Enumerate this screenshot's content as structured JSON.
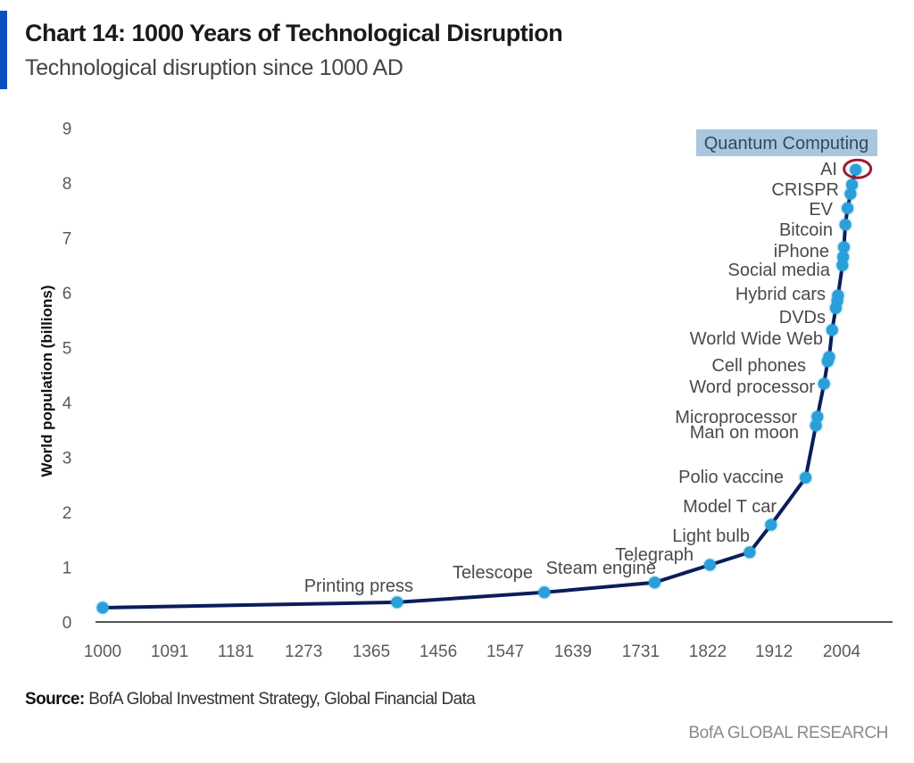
{
  "header": {
    "title": "Chart 14: 1000 Years of Technological Disruption",
    "subtitle": "Technological disruption since 1000 AD"
  },
  "footer": {
    "source_label": "Source:",
    "source_text": " BofA Global Investment Strategy, Global Financial Data",
    "brand": "BofA GLOBAL RESEARCH"
  },
  "colors": {
    "accent_bar": "#0a4fc2",
    "line": "#0b1d5a",
    "marker": "#2b9fd9",
    "highlight_box": "#a9c6de",
    "highlight_ring": "#9e1b2e",
    "axis": "#555555"
  },
  "chart_data": {
    "type": "line",
    "title": "Chart 14: 1000 Years of Technological Disruption",
    "subtitle": "Technological disruption since 1000 AD",
    "xlabel": "",
    "ylabel": "World population (billions)",
    "xlim": [
      1000,
      2023
    ],
    "ylim": [
      0,
      9
    ],
    "x_ticks": [
      1000,
      1091,
      1181,
      1273,
      1365,
      1456,
      1547,
      1639,
      1731,
      1822,
      1912,
      2004
    ],
    "x_tick_labels": [
      "1000",
      "1091",
      "1181",
      "1273",
      "1365",
      "1456",
      "1547",
      "1639",
      "1731",
      "1822",
      "1912",
      "2004"
    ],
    "y_ticks": [
      0,
      1,
      2,
      3,
      4,
      5,
      6,
      7,
      8,
      9
    ],
    "y_tick_labels": [
      "0",
      "1",
      "2",
      "3",
      "4",
      "5",
      "6",
      "7",
      "8",
      "9"
    ],
    "grid": false,
    "legend": "none",
    "series": [
      {
        "name": "World population (billions)",
        "points": [
          {
            "year": 1000,
            "value": 0.26,
            "label": ""
          },
          {
            "year": 1400,
            "value": 0.36,
            "label": "Printing press"
          },
          {
            "year": 1600,
            "value": 0.54,
            "label": "Telescope"
          },
          {
            "year": 1750,
            "value": 0.72,
            "label": "Steam engine"
          },
          {
            "year": 1825,
            "value": 1.04,
            "label": "Telegraph"
          },
          {
            "year": 1879,
            "value": 1.27,
            "label": "Light bulb"
          },
          {
            "year": 1908,
            "value": 1.77,
            "label": "Model T car"
          },
          {
            "year": 1955,
            "value": 2.63,
            "label": "Polio vaccine"
          },
          {
            "year": 1969,
            "value": 3.58,
            "label": "Man on moon"
          },
          {
            "year": 1971,
            "value": 3.74,
            "label": "Microprocessor"
          },
          {
            "year": 1980,
            "value": 4.34,
            "label": "Word processor"
          },
          {
            "year": 1985,
            "value": 4.75,
            "label": "Cell phones"
          },
          {
            "year": 1987,
            "value": 4.83,
            "label": ""
          },
          {
            "year": 1991,
            "value": 5.32,
            "label": "World Wide Web"
          },
          {
            "year": 1996,
            "value": 5.72,
            "label": "DVDs"
          },
          {
            "year": 1998,
            "value": 5.85,
            "label": ""
          },
          {
            "year": 1999,
            "value": 5.95,
            "label": "Hybrid cars"
          },
          {
            "year": 2005,
            "value": 6.5,
            "label": "Social media"
          },
          {
            "year": 2006,
            "value": 6.65,
            "label": ""
          },
          {
            "year": 2007,
            "value": 6.83,
            "label": "iPhone"
          },
          {
            "year": 2009,
            "value": 7.24,
            "label": "Bitcoin"
          },
          {
            "year": 2012,
            "value": 7.54,
            "label": "EV"
          },
          {
            "year": 2016,
            "value": 7.8,
            "label": ""
          },
          {
            "year": 2018,
            "value": 7.97,
            "label": "CRISPR"
          },
          {
            "year": 2023,
            "value": 8.24,
            "label": "AI",
            "highlight": "red-circle"
          }
        ]
      }
    ],
    "annotations": [
      {
        "text": "Quantum Computing",
        "style": "highlight-box",
        "note": "next disruption, no data point"
      }
    ]
  }
}
